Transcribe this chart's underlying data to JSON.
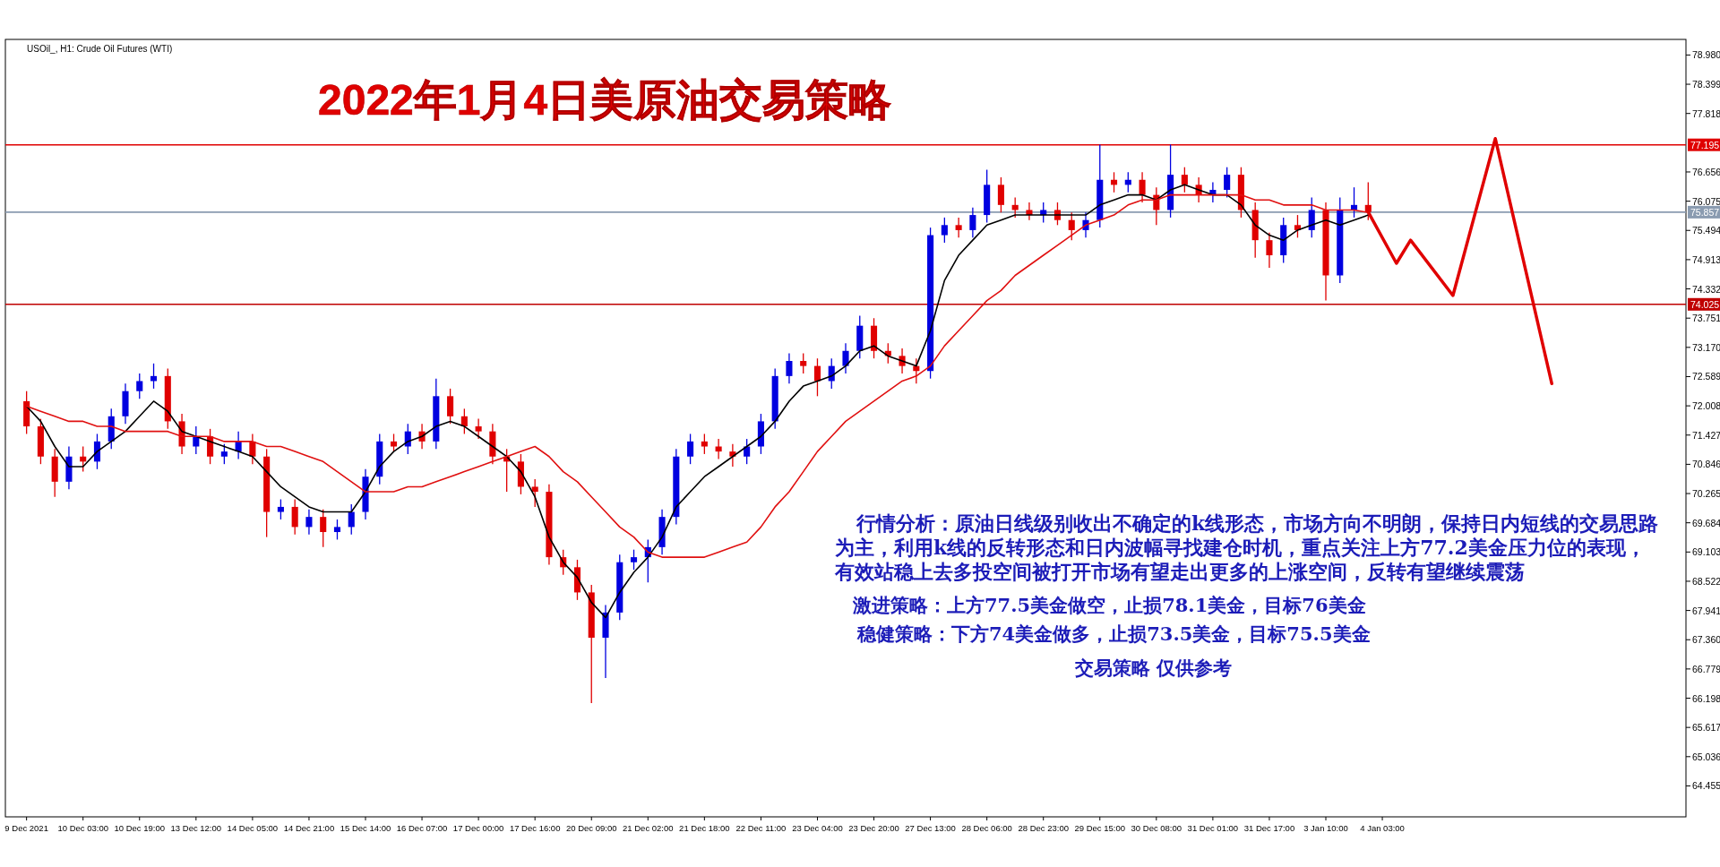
{
  "chart_data": {
    "type": "candlestick",
    "title": "2022年1月4日美原油交易策略",
    "subtitle": "USOil_, H1: Crude Oil Futures (WTI)",
    "categories": [
      null,
      "9 Dec 2021",
      null,
      null,
      null,
      "10 Dec 03:00",
      null,
      null,
      null,
      "10 Dec 19:00",
      null,
      null,
      null,
      "13 Dec 12:00",
      null,
      null,
      null,
      "14 Dec 05:00",
      null,
      null,
      null,
      "14 Dec 21:00",
      null,
      null,
      null,
      "15 Dec 14:00",
      null,
      null,
      null,
      "16 Dec 07:00",
      null,
      null,
      null,
      "17 Dec 00:00",
      null,
      null,
      null,
      "17 Dec 16:00",
      null,
      null,
      null,
      "20 Dec 09:00",
      null,
      null,
      null,
      "21 Dec 02:00",
      null,
      null,
      null,
      "21 Dec 18:00",
      null,
      null,
      null,
      "22 Dec 11:00",
      null,
      null,
      null,
      "23 Dec 04:00",
      null,
      null,
      null,
      "23 Dec 20:00",
      null,
      null,
      null,
      "27 Dec 13:00",
      null,
      null,
      null,
      "28 Dec 06:00",
      null,
      null,
      null,
      "28 Dec 23:00",
      null,
      null,
      null,
      "29 Dec 15:00",
      null,
      null,
      null,
      "30 Dec 08:00",
      null,
      null,
      null,
      "31 Dec 01:00",
      null,
      null,
      null,
      "31 Dec 17:00",
      null,
      null,
      null,
      "3 Jan 10:00",
      null,
      null,
      null,
      "4 Jan 03:00",
      null,
      null,
      null,
      null,
      null,
      null,
      null,
      null,
      null,
      null,
      null,
      null,
      null,
      null,
      null,
      null,
      null,
      null,
      null,
      null,
      null
    ],
    "ohlc": [
      null,
      [
        72.1,
        72.3,
        71.45,
        71.6
      ],
      [
        71.6,
        71.75,
        70.85,
        71.0
      ],
      [
        71.0,
        71.15,
        70.2,
        70.5
      ],
      [
        70.5,
        71.2,
        70.35,
        71.0
      ],
      [
        71.0,
        71.2,
        70.7,
        70.9
      ],
      [
        70.9,
        71.45,
        70.75,
        71.3
      ],
      [
        71.3,
        71.95,
        71.15,
        71.8
      ],
      [
        71.8,
        72.45,
        71.65,
        72.3
      ],
      [
        72.3,
        72.65,
        72.15,
        72.5
      ],
      [
        72.5,
        72.85,
        72.35,
        72.6
      ],
      [
        72.6,
        72.75,
        71.55,
        71.7
      ],
      [
        71.7,
        71.85,
        71.05,
        71.2
      ],
      [
        71.2,
        71.6,
        71.05,
        71.4
      ],
      [
        71.4,
        71.55,
        70.85,
        71.0
      ],
      [
        71.0,
        71.25,
        70.85,
        71.1
      ],
      [
        71.1,
        71.5,
        70.95,
        71.3
      ],
      [
        71.3,
        71.45,
        70.85,
        71.0
      ],
      [
        71.0,
        71.15,
        69.4,
        69.9
      ],
      [
        69.9,
        70.15,
        69.75,
        70.0
      ],
      [
        70.0,
        70.15,
        69.45,
        69.6
      ],
      [
        69.6,
        69.95,
        69.45,
        69.8
      ],
      [
        69.8,
        69.95,
        69.2,
        69.5
      ],
      [
        69.5,
        69.75,
        69.35,
        69.6
      ],
      [
        69.6,
        70.05,
        69.45,
        69.9
      ],
      [
        69.9,
        70.75,
        69.75,
        70.6
      ],
      [
        70.6,
        71.45,
        70.45,
        71.3
      ],
      [
        71.3,
        71.45,
        71.1,
        71.2
      ],
      [
        71.2,
        71.65,
        71.05,
        71.5
      ],
      [
        71.5,
        71.65,
        71.15,
        71.3
      ],
      [
        71.3,
        72.55,
        71.15,
        72.2
      ],
      [
        72.2,
        72.35,
        71.65,
        71.8
      ],
      [
        71.8,
        71.95,
        71.45,
        71.6
      ],
      [
        71.6,
        71.75,
        71.35,
        71.5
      ],
      [
        71.5,
        71.65,
        70.85,
        71.0
      ],
      [
        71.0,
        71.15,
        70.3,
        70.9
      ],
      [
        70.9,
        71.05,
        70.25,
        70.4
      ],
      [
        70.4,
        70.55,
        70.0,
        70.3
      ],
      [
        70.3,
        70.45,
        68.85,
        69.0
      ],
      [
        69.0,
        69.15,
        68.65,
        68.8
      ],
      [
        68.8,
        68.95,
        68.15,
        68.3
      ],
      [
        68.3,
        68.45,
        66.1,
        67.4
      ],
      [
        67.4,
        68.05,
        66.6,
        67.9
      ],
      [
        67.9,
        69.05,
        67.75,
        68.9
      ],
      [
        68.9,
        69.15,
        68.75,
        69.0
      ],
      [
        69.0,
        69.35,
        68.5,
        69.2
      ],
      [
        69.2,
        69.95,
        69.05,
        69.8
      ],
      [
        69.8,
        71.15,
        69.65,
        71.0
      ],
      [
        71.0,
        71.45,
        70.85,
        71.3
      ],
      [
        71.3,
        71.45,
        71.05,
        71.2
      ],
      [
        71.2,
        71.35,
        70.95,
        71.1
      ],
      [
        71.1,
        71.25,
        70.8,
        71.0
      ],
      [
        71.0,
        71.35,
        70.85,
        71.2
      ],
      [
        71.2,
        71.85,
        71.05,
        71.7
      ],
      [
        71.7,
        72.75,
        71.55,
        72.6
      ],
      [
        72.6,
        73.05,
        72.45,
        72.9
      ],
      [
        72.9,
        73.05,
        72.65,
        72.8
      ],
      [
        72.8,
        72.95,
        72.2,
        72.5
      ],
      [
        72.5,
        72.95,
        72.35,
        72.8
      ],
      [
        72.8,
        73.25,
        72.65,
        73.1
      ],
      [
        73.1,
        73.8,
        72.95,
        73.6
      ],
      [
        73.6,
        73.75,
        72.95,
        73.1
      ],
      [
        73.1,
        73.25,
        72.85,
        73.0
      ],
      [
        73.0,
        73.15,
        72.65,
        72.8
      ],
      [
        72.8,
        72.95,
        72.45,
        72.7
      ],
      [
        72.7,
        75.55,
        72.55,
        75.4
      ],
      [
        75.4,
        75.75,
        75.25,
        75.6
      ],
      [
        75.6,
        75.75,
        75.35,
        75.5
      ],
      [
        75.5,
        75.95,
        75.35,
        75.8
      ],
      [
        75.8,
        76.7,
        75.65,
        76.4
      ],
      [
        76.4,
        76.55,
        75.85,
        76.0
      ],
      [
        76.0,
        76.15,
        75.75,
        75.9
      ],
      [
        75.9,
        76.05,
        75.7,
        75.8
      ],
      [
        75.8,
        76.05,
        75.65,
        75.9
      ],
      [
        75.9,
        76.05,
        75.6,
        75.7
      ],
      [
        75.7,
        75.85,
        75.3,
        75.5
      ],
      [
        75.5,
        75.85,
        75.35,
        75.7
      ],
      [
        75.7,
        77.2,
        75.55,
        76.5
      ],
      [
        76.5,
        76.65,
        76.25,
        76.4
      ],
      [
        76.4,
        76.65,
        76.25,
        76.5
      ],
      [
        76.5,
        76.65,
        76.05,
        76.2
      ],
      [
        76.2,
        76.35,
        75.6,
        75.9
      ],
      [
        75.9,
        77.2,
        75.75,
        76.6
      ],
      [
        76.6,
        76.75,
        76.25,
        76.4
      ],
      [
        76.4,
        76.55,
        76.05,
        76.2
      ],
      [
        76.2,
        76.45,
        76.05,
        76.3
      ],
      [
        76.3,
        76.75,
        76.15,
        76.6
      ],
      [
        76.6,
        76.75,
        75.75,
        75.9
      ],
      [
        75.9,
        76.05,
        74.95,
        75.3
      ],
      [
        75.3,
        75.45,
        74.75,
        75.0
      ],
      [
        75.0,
        75.75,
        74.85,
        75.6
      ],
      [
        75.6,
        75.8,
        75.35,
        75.5
      ],
      [
        75.5,
        76.15,
        75.35,
        75.9
      ],
      [
        75.9,
        76.05,
        74.1,
        74.6
      ],
      [
        74.6,
        76.15,
        74.45,
        75.9
      ],
      [
        75.9,
        76.35,
        75.75,
        76.0
      ],
      [
        76.0,
        76.45,
        75.7,
        75.86
      ],
      null,
      null,
      null,
      null,
      null,
      null,
      null,
      null,
      null,
      null,
      null,
      null,
      null,
      null,
      null,
      null,
      null,
      null,
      null,
      null,
      null,
      null
    ],
    "colors": [
      null,
      "#e00000",
      "#e00000",
      "#e00000",
      "#0000e0",
      "#e00000",
      "#0000e0",
      "#0000e0",
      "#0000e0",
      "#0000e0",
      "#0000e0",
      "#e00000",
      "#e00000",
      "#0000e0",
      "#e00000",
      "#0000e0",
      "#0000e0",
      "#e00000",
      "#e00000",
      "#0000e0",
      "#e00000",
      "#0000e0",
      "#e00000",
      "#0000e0",
      "#0000e0",
      "#0000e0",
      "#0000e0",
      "#e00000",
      "#0000e0",
      "#e00000",
      "#0000e0",
      "#e00000",
      "#e00000",
      "#e00000",
      "#e00000",
      "#e00000",
      "#e00000",
      "#e00000",
      "#e00000",
      "#e00000",
      "#e00000",
      "#e00000",
      "#0000e0",
      "#0000e0",
      "#0000e0",
      "#0000e0",
      "#0000e0",
      "#0000e0",
      "#0000e0",
      "#e00000",
      "#e00000",
      "#e00000",
      "#0000e0",
      "#0000e0",
      "#0000e0",
      "#0000e0",
      "#e00000",
      "#e00000",
      "#0000e0",
      "#0000e0",
      "#0000e0",
      "#e00000",
      "#e00000",
      "#e00000",
      "#e00000",
      "#0000e0",
      "#0000e0",
      "#e00000",
      "#0000e0",
      "#0000e0",
      "#e00000",
      "#e00000",
      "#e00000",
      "#0000e0",
      "#e00000",
      "#e00000",
      "#0000e0",
      "#0000e0",
      "#e00000",
      "#0000e0",
      "#e00000",
      "#e00000",
      "#0000e0",
      "#e00000",
      "#e00000",
      "#0000e0",
      "#0000e0",
      "#e00000",
      "#e00000",
      "#e00000",
      "#0000e0",
      "#e00000",
      "#0000e0",
      "#e00000",
      "#0000e0",
      "#0000e0",
      "#e00000",
      null,
      null,
      null,
      null,
      null,
      null,
      null,
      null,
      null,
      null,
      null,
      null,
      null,
      null,
      null,
      null,
      null,
      null,
      null,
      null,
      null,
      null
    ],
    "series": [
      {
        "type": "line",
        "color": "#000000",
        "values": [
          null,
          72.0,
          71.7,
          71.2,
          70.8,
          70.8,
          71.1,
          71.3,
          71.5,
          71.8,
          72.1,
          71.9,
          71.5,
          71.4,
          71.3,
          71.2,
          71.1,
          71.0,
          70.7,
          70.4,
          70.2,
          70.0,
          69.9,
          69.9,
          69.9,
          70.3,
          70.8,
          71.1,
          71.3,
          71.4,
          71.6,
          71.7,
          71.6,
          71.4,
          71.2,
          71.0,
          70.7,
          70.2,
          69.4,
          68.9,
          68.6,
          68.1,
          67.8,
          68.3,
          68.7,
          69.0,
          69.4,
          70.0,
          70.3,
          70.6,
          70.8,
          71.0,
          71.2,
          71.4,
          71.7,
          72.1,
          72.4,
          72.5,
          72.6,
          72.8,
          73.1,
          73.2,
          73.0,
          72.9,
          72.8,
          73.5,
          74.5,
          75.0,
          75.3,
          75.6,
          75.7,
          75.8,
          75.8,
          75.8,
          75.8,
          75.8,
          75.8,
          76.0,
          76.1,
          76.2,
          76.2,
          76.1,
          76.3,
          76.4,
          76.3,
          76.2,
          76.2,
          76.0,
          75.6,
          75.4,
          75.3,
          75.5,
          75.6,
          75.7,
          75.6,
          75.7,
          75.8,
          null,
          null,
          null,
          null,
          null,
          null,
          null,
          null,
          null,
          null,
          null,
          null,
          null,
          null,
          null,
          null,
          null,
          null,
          null,
          null,
          null,
          null
        ]
      },
      {
        "type": "line",
        "color": "#e01010",
        "values": [
          null,
          72.0,
          71.9,
          71.8,
          71.7,
          71.7,
          71.6,
          71.6,
          71.5,
          71.5,
          71.5,
          71.5,
          71.4,
          71.4,
          71.4,
          71.3,
          71.3,
          71.3,
          71.2,
          71.2,
          71.1,
          71.0,
          70.9,
          70.7,
          70.5,
          70.3,
          70.3,
          70.3,
          70.4,
          70.4,
          70.5,
          70.6,
          70.7,
          70.8,
          70.9,
          71.0,
          71.1,
          71.2,
          71.0,
          70.7,
          70.5,
          70.2,
          69.9,
          69.6,
          69.4,
          69.1,
          69.0,
          69.0,
          69.0,
          69.0,
          69.1,
          69.2,
          69.3,
          69.6,
          70.0,
          70.3,
          70.7,
          71.1,
          71.4,
          71.7,
          71.9,
          72.1,
          72.3,
          72.5,
          72.6,
          72.8,
          73.2,
          73.5,
          73.8,
          74.1,
          74.3,
          74.6,
          74.8,
          75.0,
          75.2,
          75.4,
          75.6,
          75.7,
          75.8,
          76.0,
          76.1,
          76.1,
          76.2,
          76.2,
          76.2,
          76.2,
          76.2,
          76.2,
          76.1,
          76.1,
          76.0,
          76.0,
          76.0,
          75.9,
          75.9,
          75.9,
          75.85,
          null,
          null,
          null,
          null,
          null,
          null,
          null,
          null,
          null,
          null,
          null,
          null,
          null,
          null,
          null,
          null,
          null,
          null,
          null,
          null,
          null,
          null
        ]
      },
      {
        "type": "line",
        "color": "#e00000",
        "values": [
          null,
          null,
          null,
          null,
          null,
          null,
          null,
          null,
          null,
          null,
          null,
          null,
          null,
          null,
          null,
          null,
          null,
          null,
          null,
          null,
          null,
          null,
          null,
          null,
          null,
          null,
          null,
          null,
          null,
          null,
          null,
          null,
          null,
          null,
          null,
          null,
          null,
          null,
          null,
          null,
          null,
          null,
          null,
          null,
          null,
          null,
          null,
          null,
          null,
          null,
          null,
          null,
          null,
          null,
          null,
          null,
          null,
          null,
          null,
          null,
          null,
          null,
          null,
          null,
          null,
          null,
          null,
          null,
          null,
          null,
          null,
          null,
          null,
          null,
          null,
          null,
          null,
          null,
          null,
          null,
          null,
          null,
          null,
          null,
          null,
          null,
          null,
          null,
          null,
          null,
          null,
          null,
          null,
          null,
          null,
          null,
          75.86,
          null,
          74.84,
          75.3,
          null,
          null,
          74.2,
          null,
          null,
          77.32,
          null,
          null,
          null,
          72.45,
          null,
          null,
          null,
          null,
          null,
          null,
          null,
          null,
          null
        ]
      }
    ],
    "ylim": [
      63.84,
      79.29
    ],
    "yticks": [
      {
        "value": 78.98,
        "label": "78.980"
      },
      78.399,
      77.818,
      76.656,
      76.075,
      75.494,
      74.913,
      74.332,
      73.751,
      {
        "value": 73.17,
        "label": "73.170"
      },
      72.589,
      72.008,
      71.427,
      70.846,
      70.265,
      69.684,
      69.103,
      68.522,
      67.941,
      {
        "value": 67.36,
        "label": "67.360"
      },
      66.779,
      66.198,
      65.617,
      65.036,
      64.455
    ],
    "ref_lines": [
      {
        "axis": "y",
        "value": 77.195,
        "label": "77.195",
        "color": "#e00000"
      },
      {
        "axis": "y",
        "value": 75.857,
        "label": "75.857",
        "color": "#8a9bb0"
      },
      {
        "axis": "y",
        "value": 74.025,
        "label": "74.025",
        "color": "#c00000"
      }
    ],
    "annotations": [
      "行情分析：原油日线级别收出不确定的k线形态，市场方向不明朗，保持日内短线的交易思路为主，利用k线的反转形态和日内波幅寻找建仓时机，重点关注上方77.2美金压力位的表现，有效站稳上去多投空间被打开市场有望走出更多的上涨空间，反转有望继续震荡",
      "激进策略：上方77.5美金做空，止损78.1美金，目标76美金",
      "稳健策略：下方74美金做多，止损73.5美金，目标75.5美金",
      "交易策略 仅供参考"
    ],
    "grid": false
  }
}
